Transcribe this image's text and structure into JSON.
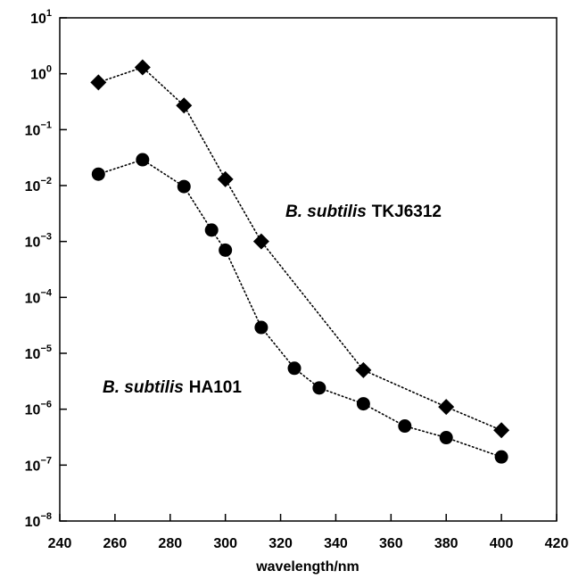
{
  "chart_data": {
    "type": "scatter",
    "title": "",
    "xlabel": "wavelength/nm",
    "ylabel": "",
    "xlim": [
      240,
      420
    ],
    "ylim_log10": [
      -8,
      1
    ],
    "y_scale": "log",
    "grid": false,
    "legend": "none",
    "x_ticks": [
      240,
      260,
      280,
      300,
      320,
      340,
      360,
      380,
      400,
      420
    ],
    "y_ticks": [
      {
        "exp": 1,
        "base": "10",
        "sup": "1"
      },
      {
        "exp": 0,
        "base": "10",
        "sup": "0"
      },
      {
        "exp": -1,
        "base": "10",
        "sup": "−1"
      },
      {
        "exp": -2,
        "base": "10",
        "sup": "−2"
      },
      {
        "exp": -3,
        "base": "10",
        "sup": "−3"
      },
      {
        "exp": -4,
        "base": "10",
        "sup": "−4"
      },
      {
        "exp": -5,
        "base": "10",
        "sup": "−5"
      },
      {
        "exp": -6,
        "base": "10",
        "sup": "−6"
      },
      {
        "exp": -7,
        "base": "10",
        "sup": "−7"
      },
      {
        "exp": -8,
        "base": "10",
        "sup": "−8"
      }
    ],
    "series": [
      {
        "name": "B. subtilis TKJ6312",
        "marker": "diamond",
        "line": "dotted",
        "color": "#000000",
        "x": [
          254,
          270,
          285,
          300,
          313,
          350,
          380,
          400
        ],
        "y": [
          0.7,
          1.3,
          0.27,
          0.013,
          0.001,
          5e-06,
          1.1e-06,
          4.2e-07
        ]
      },
      {
        "name": "B. subtilis HA101",
        "marker": "circle",
        "line": "dotted",
        "color": "#000000",
        "x": [
          254,
          270,
          285,
          295,
          300,
          313,
          325,
          334,
          350,
          365,
          380,
          400
        ],
        "y": [
          0.016,
          0.029,
          0.0096,
          0.0016,
          0.0007,
          2.9e-05,
          5.4e-06,
          2.4e-06,
          1.25e-06,
          5e-07,
          3.1e-07,
          1.4e-07
        ]
      }
    ],
    "annotations": [
      {
        "italic": "B. subtilis",
        "plain": "TKJ6312"
      },
      {
        "italic": "B. subtilis",
        "plain": "HA101"
      }
    ]
  }
}
